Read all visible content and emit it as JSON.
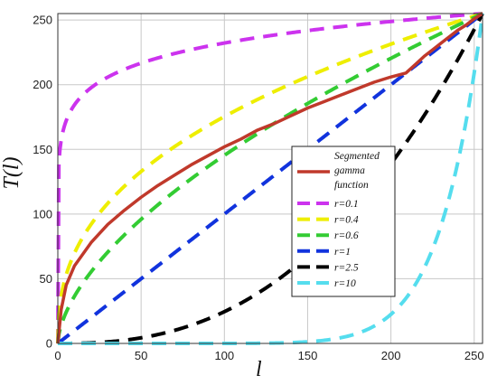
{
  "chart_data": {
    "type": "line",
    "xlabel": "l",
    "ylabel": "T(l)",
    "xlim": [
      0,
      255
    ],
    "ylim": [
      0,
      255
    ],
    "xticks": [
      0,
      50,
      100,
      150,
      200,
      250
    ],
    "yticks": [
      0,
      50,
      100,
      150,
      200,
      250
    ],
    "grid": true,
    "legend_position": "center-right",
    "series": [
      {
        "name": "Segmented gamma function",
        "color": "#c0392b",
        "dashed": false,
        "x": [
          0,
          2,
          5,
          10,
          20,
          30,
          40,
          50,
          60,
          70,
          80,
          90,
          100,
          110,
          120,
          130,
          140,
          150,
          160,
          170,
          180,
          190,
          200,
          209,
          215,
          220,
          225,
          230,
          235,
          240,
          245,
          250,
          255
        ],
        "y": [
          0,
          26,
          45,
          60,
          78,
          92,
          103,
          113,
          122,
          130,
          138,
          145,
          152,
          158,
          165,
          170,
          176,
          182,
          187,
          192,
          197,
          202,
          206,
          209,
          216,
          222,
          227,
          232,
          237,
          242,
          246,
          251,
          255
        ]
      },
      {
        "name": "r=0.1",
        "color": "#cc33ee",
        "dashed": true,
        "gamma": 0.1
      },
      {
        "name": "r=0.4",
        "color": "#eeee00",
        "dashed": true,
        "gamma": 0.4
      },
      {
        "name": "r=0.6",
        "color": "#33cc33",
        "dashed": true,
        "gamma": 0.6
      },
      {
        "name": "r=1",
        "color": "#1133dd",
        "dashed": true,
        "gamma": 1
      },
      {
        "name": "r=2.5",
        "color": "#000000",
        "dashed": true,
        "gamma": 2.5
      },
      {
        "name": "r=10",
        "color": "#55ddee",
        "dashed": true,
        "gamma": 10
      }
    ]
  }
}
